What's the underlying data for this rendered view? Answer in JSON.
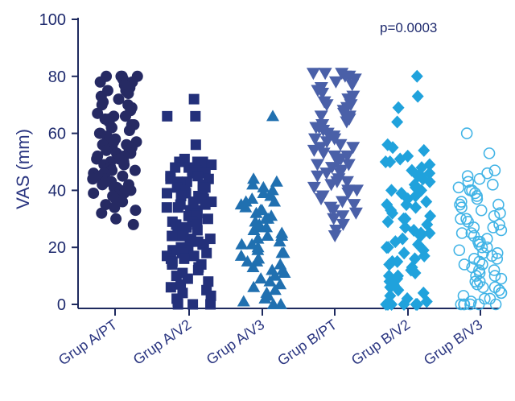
{
  "chart_data": {
    "type": "scatter",
    "title": "",
    "xlabel": "",
    "ylabel": "VAS (mm)",
    "ylim": [
      0,
      100
    ],
    "yticks": [
      0,
      20,
      40,
      60,
      80,
      100
    ],
    "categories": [
      "Grup A/PT",
      "Grup A/V2",
      "Grup A/V3",
      "Grup B/PT",
      "Grup B/V2",
      "Grup B/V3"
    ],
    "annotation": "p=0.0003",
    "grid": false,
    "legend": "none",
    "series": [
      {
        "marker": "circle-filled",
        "color": "#262a63",
        "values": [
          80,
          80,
          80,
          80,
          79,
          79,
          78,
          78,
          77,
          76,
          75,
          75,
          74,
          73,
          72,
          71,
          70,
          70,
          69,
          68,
          67,
          66,
          66,
          65,
          65,
          64,
          63,
          63,
          62,
          62,
          61,
          60,
          60,
          59,
          58,
          58,
          57,
          57,
          56,
          56,
          55,
          55,
          54,
          54,
          53,
          53,
          52,
          52,
          51,
          51,
          50,
          50,
          49,
          49,
          48,
          48,
          47,
          47,
          47,
          46,
          46,
          45,
          45,
          44,
          44,
          43,
          43,
          42,
          42,
          41,
          41,
          40,
          40,
          39,
          39,
          38,
          38,
          37,
          36,
          35,
          34,
          33,
          32,
          30,
          28
        ]
      },
      {
        "marker": "square-filled",
        "color": "#23307a",
        "values": [
          72,
          66,
          66,
          56,
          51,
          50,
          50,
          50,
          49,
          49,
          48,
          48,
          47,
          47,
          46,
          46,
          45,
          45,
          44,
          44,
          43,
          43,
          42,
          42,
          41,
          41,
          40,
          40,
          39,
          39,
          38,
          38,
          37,
          37,
          36,
          36,
          35,
          35,
          34,
          34,
          33,
          33,
          32,
          32,
          31,
          31,
          30,
          30,
          29,
          29,
          28,
          28,
          27,
          27,
          26,
          26,
          25,
          25,
          24,
          24,
          23,
          23,
          22,
          22,
          21,
          21,
          20,
          20,
          19,
          19,
          18,
          18,
          17,
          17,
          16,
          16,
          15,
          15,
          14,
          14,
          13,
          12,
          11,
          10,
          9,
          8,
          7,
          6,
          5,
          4,
          3,
          2,
          1,
          0,
          0,
          0
        ]
      },
      {
        "marker": "triangle-up-filled",
        "color": "#2070b0",
        "values": [
          66,
          44,
          43,
          42,
          41,
          40,
          39,
          38,
          38,
          37,
          36,
          36,
          35,
          34,
          33,
          33,
          32,
          31,
          30,
          30,
          29,
          28,
          27,
          27,
          26,
          25,
          24,
          24,
          23,
          22,
          21,
          21,
          20,
          19,
          18,
          18,
          17,
          16,
          15,
          15,
          14,
          13,
          12,
          12,
          11,
          10,
          9,
          8,
          7,
          6,
          5,
          4,
          3,
          2,
          1,
          0,
          0
        ]
      },
      {
        "marker": "triangle-down-filled",
        "color": "#4a60a8",
        "values": [
          81,
          81,
          81,
          80,
          80,
          79,
          78,
          77,
          76,
          75,
          74,
          73,
          72,
          71,
          70,
          70,
          69,
          68,
          67,
          66,
          66,
          65,
          64,
          63,
          62,
          62,
          61,
          60,
          59,
          58,
          58,
          57,
          56,
          55,
          55,
          54,
          53,
          52,
          52,
          51,
          50,
          49,
          49,
          48,
          47,
          46,
          46,
          45,
          44,
          43,
          43,
          42,
          41,
          40,
          40,
          39,
          38,
          37,
          36,
          35,
          34,
          33,
          32,
          31,
          30,
          28,
          26,
          24
        ]
      },
      {
        "marker": "diamond-filled",
        "color": "#20a2dc",
        "values": [
          80,
          73,
          69,
          64,
          56,
          55,
          54,
          52,
          51,
          50,
          50,
          49,
          48,
          47,
          46,
          45,
          45,
          44,
          43,
          42,
          41,
          40,
          40,
          39,
          38,
          37,
          36,
          35,
          35,
          34,
          33,
          32,
          31,
          30,
          30,
          29,
          28,
          27,
          26,
          25,
          25,
          24,
          23,
          22,
          21,
          20,
          20,
          19,
          18,
          17,
          16,
          15,
          15,
          14,
          13,
          12,
          11,
          10,
          10,
          9,
          8,
          7,
          6,
          5,
          4,
          3,
          2,
          1,
          0,
          0,
          0,
          0,
          0,
          0
        ]
      },
      {
        "marker": "circle-open",
        "color": "#42b4e6",
        "values": [
          60,
          53,
          47,
          46,
          45,
          44,
          43,
          42,
          41,
          40,
          40,
          39,
          38,
          37,
          36,
          35,
          35,
          34,
          33,
          32,
          31,
          30,
          30,
          29,
          28,
          27,
          27,
          26,
          25,
          25,
          24,
          23,
          22,
          22,
          21,
          20,
          20,
          19,
          18,
          18,
          17,
          16,
          16,
          15,
          14,
          14,
          13,
          12,
          12,
          11,
          10,
          10,
          9,
          8,
          8,
          7,
          6,
          6,
          5,
          4,
          4,
          3,
          2,
          2,
          1,
          0,
          0,
          0,
          0,
          0,
          0
        ]
      }
    ]
  }
}
